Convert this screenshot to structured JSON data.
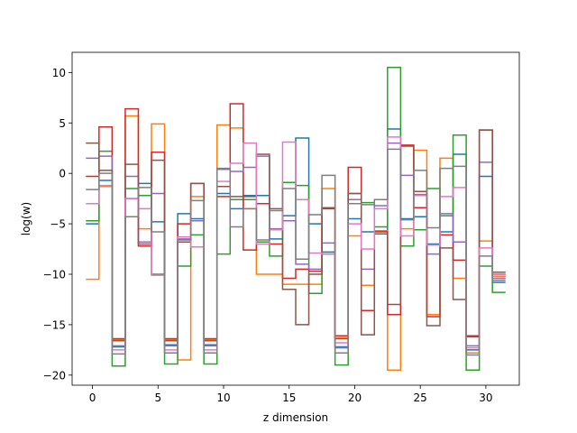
{
  "chart_data": {
    "type": "line",
    "drawstyle": "steps-mid",
    "xlabel": "z dimension",
    "ylabel": "log(w)",
    "xlim": [
      -1.55,
      32.55
    ],
    "ylim": [
      -21,
      12
    ],
    "xticks": [
      0,
      5,
      10,
      15,
      20,
      25,
      30
    ],
    "yticks": [
      -20,
      -15,
      -10,
      -5,
      0,
      5,
      10
    ],
    "grid": false,
    "legend": false,
    "series": [
      {
        "color": "#1f77b4",
        "values": [
          -5.0,
          -0.7,
          -17.2,
          -2.5,
          -1.0,
          -4.8,
          -17.0,
          -4.0,
          -4.5,
          -17.0,
          -2.0,
          -3.5,
          -2.2,
          -2.2,
          -6.5,
          -4.2,
          3.5,
          -5.0,
          -7.8,
          -17.2,
          -4.5,
          -5.8,
          -5.7,
          4.4,
          -4.5,
          -4.3,
          -7.0,
          -5.8,
          1.9,
          -17.5,
          -0.3,
          -10.8
        ]
      },
      {
        "color": "#ff7f0e",
        "values": [
          -10.5,
          -1.3,
          -16.5,
          5.7,
          -5.5,
          4.9,
          -16.5,
          -18.5,
          -2.3,
          -16.5,
          4.8,
          4.5,
          -3.5,
          -10.0,
          -10.0,
          -11.0,
          -11.0,
          -11.0,
          -1.5,
          -16.3,
          -6.2,
          -11.1,
          -5.7,
          -19.5,
          -5.5,
          2.3,
          -14.0,
          1.5,
          -10.4,
          -17.8,
          -6.7,
          -10.2
        ]
      },
      {
        "color": "#2ca02c",
        "values": [
          -4.7,
          2.2,
          -19.1,
          -1.5,
          -2.2,
          -10.0,
          -18.9,
          -9.2,
          -6.1,
          -18.9,
          -8.0,
          -2.6,
          -2.6,
          -6.8,
          -8.2,
          -0.9,
          -1.2,
          -11.9,
          -8.0,
          -19.0,
          -2.0,
          -2.9,
          -5.3,
          10.5,
          -7.2,
          -5.6,
          -1.5,
          -4.2,
          3.8,
          -19.5,
          -9.2,
          -11.8
        ]
      },
      {
        "color": "#d62728",
        "values": [
          -0.3,
          4.6,
          -16.4,
          6.4,
          -7.2,
          2.1,
          -16.4,
          -5.0,
          -1.0,
          -16.4,
          -2.3,
          6.9,
          -7.6,
          -3.0,
          -7.0,
          -10.4,
          -9.5,
          -9.7,
          -3.5,
          -16.1,
          0.6,
          -13.6,
          -5.8,
          -14.0,
          2.8,
          -3.4,
          -14.2,
          -6.1,
          -8.6,
          -16.1,
          4.3,
          -10.0
        ]
      },
      {
        "color": "#9467bd",
        "values": [
          1.5,
          1.7,
          -17.1,
          -0.3,
          -6.8,
          -2.0,
          -17.1,
          -6.5,
          -4.7,
          -17.1,
          0.4,
          0.2,
          0.6,
          1.7,
          -5.5,
          -4.7,
          -9.0,
          -9.5,
          -6.9,
          -17.3,
          -2.6,
          -9.5,
          -3.2,
          3.0,
          -0.2,
          -2.1,
          -8.0,
          -4.0,
          -6.8,
          -17.1,
          1.1,
          -10.4
        ]
      },
      {
        "color": "#8c564b",
        "values": [
          3.0,
          0.3,
          -16.6,
          0.9,
          -7.0,
          1.3,
          -16.6,
          -6.8,
          -1.0,
          -16.6,
          -1.3,
          -2.3,
          -2.3,
          1.9,
          -3.5,
          -11.5,
          -15.0,
          -10.0,
          -3.4,
          -16.4,
          -2.0,
          -16.0,
          -6.0,
          -13.0,
          2.7,
          -1.8,
          -15.1,
          -7.4,
          -12.5,
          -16.2,
          4.3,
          -9.8
        ]
      },
      {
        "color": "#e377c2",
        "values": [
          -3.0,
          -1.2,
          -17.5,
          -2.5,
          -3.5,
          -10.1,
          -17.5,
          -6.3,
          -7.3,
          -17.5,
          -0.8,
          1.0,
          3.0,
          -7.0,
          -5.6,
          3.1,
          -2.6,
          -7.9,
          -8.0,
          -16.8,
          -5.0,
          -7.5,
          -3.5,
          3.6,
          -6.2,
          -2.2,
          -7.1,
          -2.3,
          -1.4,
          -17.3,
          -7.4,
          -10.0
        ]
      },
      {
        "color": "#7f7f7f",
        "values": [
          -1.6,
          0.0,
          -17.9,
          -4.3,
          -1.4,
          -5.8,
          -17.8,
          -6.6,
          -2.7,
          -17.8,
          0.5,
          -5.3,
          -3.5,
          -6.6,
          -3.7,
          -1.5,
          -8.5,
          -4.1,
          -0.2,
          -17.8,
          -3.0,
          -3.1,
          -2.6,
          2.4,
          -4.6,
          0.3,
          -5.4,
          0.5,
          0.7,
          -18.0,
          -8.2,
          -10.6
        ]
      }
    ]
  }
}
